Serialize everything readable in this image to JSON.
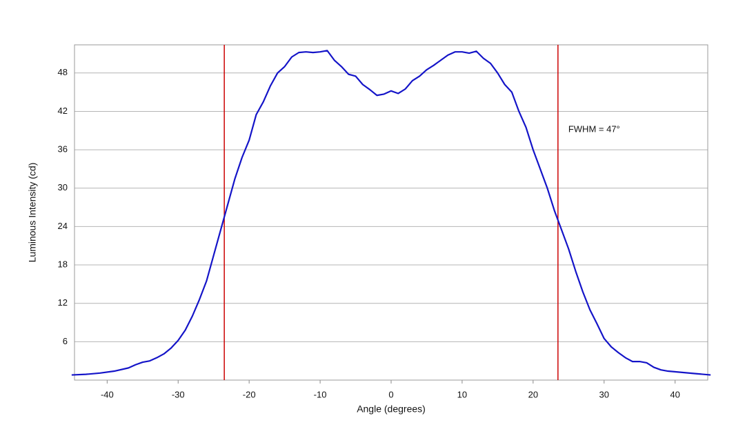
{
  "chart_data": {
    "type": "line",
    "xlabel": "Angle (degrees)",
    "ylabel": "Luminous Intensity (cd)",
    "annotation": "FWHM = 47°",
    "x": [
      -45,
      -43,
      -41,
      -39,
      -37,
      -36,
      -35,
      -34,
      -33,
      -32,
      -31,
      -30,
      -29,
      -28,
      -27,
      -26,
      -25,
      -24,
      -23,
      -22,
      -21,
      -20,
      -19,
      -18,
      -17,
      -16,
      -15,
      -14,
      -13,
      -12,
      -11,
      -10,
      -9,
      -8,
      -7,
      -6,
      -5,
      -4,
      -3,
      -2,
      -1,
      0,
      1,
      2,
      3,
      4,
      5,
      6,
      7,
      8,
      9,
      10,
      11,
      12,
      13,
      14,
      15,
      16,
      17,
      18,
      19,
      20,
      21,
      22,
      23,
      24,
      25,
      26,
      27,
      28,
      29,
      30,
      31,
      32,
      33,
      34,
      35,
      36,
      37,
      38,
      39,
      41,
      43,
      45
    ],
    "series": [
      {
        "name": "Luminous Intensity",
        "color": "#1414c8",
        "values": [
          0.8,
          0.9,
          1.1,
          1.4,
          1.9,
          2.4,
          2.8,
          3.0,
          3.5,
          4.1,
          5.0,
          6.2,
          7.8,
          10.0,
          12.6,
          15.5,
          19.5,
          23.5,
          27.5,
          31.5,
          34.8,
          37.5,
          41.5,
          43.5,
          46.0,
          48.0,
          49.0,
          50.5,
          51.2,
          51.3,
          51.2,
          51.3,
          51.5,
          50.0,
          49.0,
          47.8,
          47.5,
          46.2,
          45.4,
          44.5,
          44.7,
          45.2,
          44.8,
          45.5,
          46.8,
          47.5,
          48.5,
          49.2,
          50.0,
          50.8,
          51.3,
          51.3,
          51.1,
          51.4,
          50.3,
          49.5,
          48.0,
          46.2,
          45.0,
          42.0,
          39.5,
          36.0,
          33.0,
          30.0,
          26.5,
          23.5,
          20.5,
          17.0,
          13.8,
          11.0,
          8.8,
          6.5,
          5.2,
          4.3,
          3.5,
          2.9,
          2.9,
          2.7,
          2.0,
          1.6,
          1.4,
          1.2,
          1.0,
          0.8
        ]
      }
    ],
    "vlines": [
      -23.5,
      23.5
    ],
    "vline_color": "#cc0000",
    "xlim": [
      -44.6,
      44.6
    ],
    "ylim": [
      0,
      52.4
    ],
    "xticks": [
      -40,
      -30,
      -20,
      -10,
      0,
      10,
      20,
      30,
      40
    ],
    "yticks": [
      6,
      12,
      18,
      24,
      30,
      36,
      42,
      48
    ],
    "grid": true
  }
}
